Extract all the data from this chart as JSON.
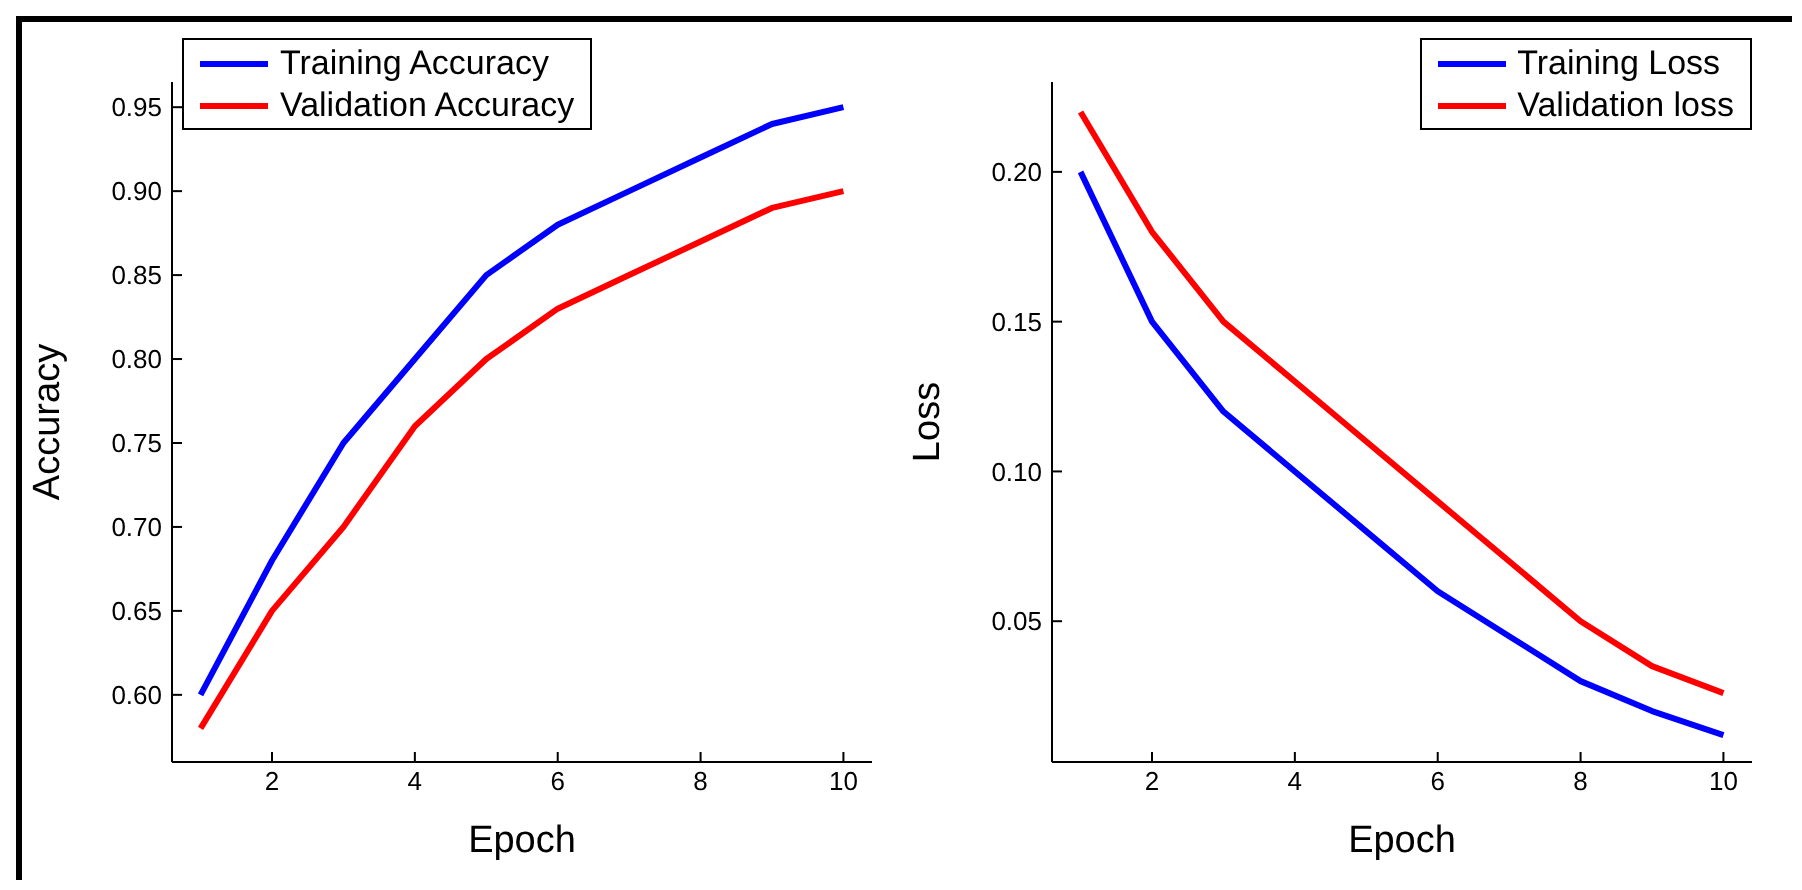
{
  "chart_data": [
    {
      "type": "line",
      "xlabel": "Epoch",
      "ylabel": "Accuracy",
      "x": [
        1,
        2,
        3,
        4,
        5,
        6,
        7,
        8,
        9,
        10
      ],
      "xlim": [
        0.6,
        10.4
      ],
      "xticks": [
        2,
        4,
        6,
        8,
        10
      ],
      "ylim": [
        0.56,
        0.965
      ],
      "yticks": [
        {
          "value": 0.6,
          "label": "0.60"
        },
        0.65,
        {
          "value": 0.7,
          "label": "0.70"
        },
        0.75,
        {
          "value": 0.8,
          "label": "0.80"
        },
        0.85,
        {
          "value": 0.9,
          "label": "0.90"
        },
        0.95
      ],
      "legend": "top left",
      "series": [
        {
          "name": "Training Accuracy",
          "color": "#0000ff",
          "values": [
            0.6,
            0.68,
            0.75,
            0.8,
            0.85,
            0.88,
            0.9,
            0.92,
            0.94,
            0.95
          ]
        },
        {
          "name": "Validation Accuracy",
          "color": "#ff0000",
          "values": [
            0.58,
            0.65,
            0.7,
            0.76,
            0.8,
            0.83,
            0.85,
            0.87,
            0.89,
            0.9
          ]
        }
      ]
    },
    {
      "type": "line",
      "xlabel": "Epoch",
      "ylabel": "Loss",
      "x": [
        1,
        2,
        3,
        4,
        5,
        6,
        7,
        8,
        9,
        10
      ],
      "xlim": [
        0.6,
        10.4
      ],
      "xticks": [
        2,
        4,
        6,
        8,
        10
      ],
      "ylim": [
        0.003,
        0.23
      ],
      "yticks": [
        0.05,
        {
          "value": 0.1,
          "label": "0.10"
        },
        0.15,
        {
          "value": 0.2,
          "label": "0.20"
        }
      ],
      "legend": "top right",
      "series": [
        {
          "name": "Training Loss",
          "color": "#0000ff",
          "values": [
            0.2,
            0.15,
            0.12,
            0.1,
            0.08,
            0.06,
            0.045,
            0.03,
            0.02,
            0.012
          ]
        },
        {
          "name": "Validation loss",
          "color": "#ff0000",
          "values": [
            0.22,
            0.18,
            0.15,
            0.13,
            0.11,
            0.09,
            0.07,
            0.05,
            0.035,
            0.026
          ]
        }
      ]
    }
  ]
}
